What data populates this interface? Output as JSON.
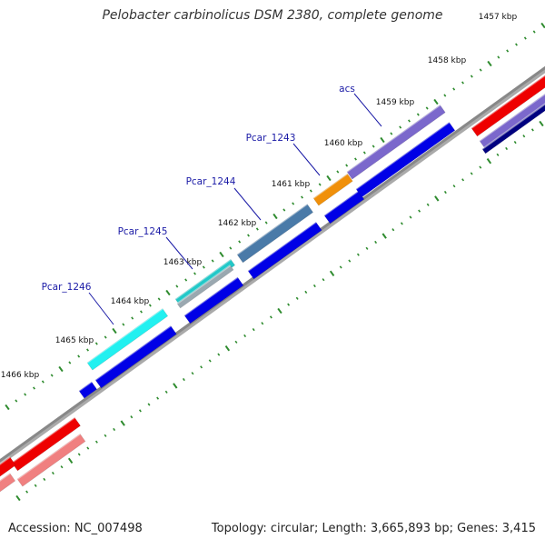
{
  "title": "Pelobacter carbinolicus DSM 2380, complete genome",
  "footer": {
    "accession": "Accession: NC_007498",
    "summary": "Topology: circular; Length: 3,665,893 bp; Genes: 3,415"
  },
  "colors": {
    "background": "#ffffff",
    "backbone": "#888888",
    "tick": "#2e8b2e",
    "tick_label": "#111111",
    "gene_label": "#1a1aa6",
    "leader": "#1a1aa6"
  },
  "ticks": [
    {
      "label": "1457 kbp"
    },
    {
      "label": "1458 kbp"
    },
    {
      "label": "1459 kbp"
    },
    {
      "label": "1460 kbp"
    },
    {
      "label": "1461 kbp"
    },
    {
      "label": "1462 kbp"
    },
    {
      "label": "1463 kbp"
    },
    {
      "label": "1464 kbp"
    },
    {
      "label": "1465 kbp"
    },
    {
      "label": "1466 kbp"
    }
  ],
  "gene_labels": [
    {
      "name": "acs"
    },
    {
      "name": "Pcar_1243"
    },
    {
      "name": "Pcar_1244"
    },
    {
      "name": "Pcar_1245"
    },
    {
      "name": "Pcar_1246"
    }
  ],
  "features": [
    {
      "id": "acs",
      "color": "#7b68cc"
    },
    {
      "id": "Pcar_1243",
      "color": "#f0900a"
    },
    {
      "id": "Pcar_1244",
      "color": "#4a7aa8"
    },
    {
      "id": "Pcar_1245",
      "color": "#22c8c8"
    },
    {
      "id": "Pcar_1246",
      "color": "#22f0f0"
    }
  ]
}
